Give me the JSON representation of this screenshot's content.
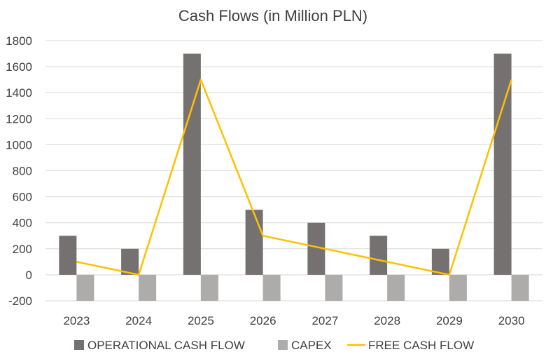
{
  "chart_data": {
    "type": "bar",
    "title": "Cash Flows (in Million PLN)",
    "xlabel": "",
    "ylabel": "",
    "categories": [
      "2023",
      "2024",
      "2025",
      "2026",
      "2027",
      "2028",
      "2029",
      "2030"
    ],
    "ylim": [
      -200,
      1800
    ],
    "yticks": [
      "-200",
      "0",
      "200",
      "400",
      "600",
      "800",
      "1000",
      "1200",
      "1400",
      "1600",
      "1800"
    ],
    "grid": true,
    "legend_position": "bottom",
    "series": [
      {
        "name": "OPERATIONAL CASH FLOW",
        "kind": "bar",
        "color": "#767171",
        "values": [
          300,
          200,
          1700,
          500,
          400,
          300,
          200,
          1700
        ]
      },
      {
        "name": "CAPEX",
        "kind": "bar",
        "color": "#aeabab",
        "values": [
          -200,
          -200,
          -200,
          -200,
          -200,
          -200,
          -200,
          -200
        ]
      },
      {
        "name": "FREE CASH FLOW",
        "kind": "line",
        "color": "#ffc000",
        "values": [
          100,
          0,
          1500,
          300,
          200,
          100,
          0,
          1500
        ]
      }
    ],
    "gridline_color": "#d9d9d9",
    "text_color": "#404040"
  }
}
